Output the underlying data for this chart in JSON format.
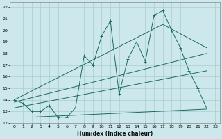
{
  "xlabel": "Humidex (Indice chaleur)",
  "bg_color": "#cce8ec",
  "grid_color": "#aacccc",
  "line_color": "#1a6b5a",
  "xlim": [
    -0.5,
    23.5
  ],
  "ylim": [
    12,
    22.4
  ],
  "xticks": [
    0,
    1,
    2,
    3,
    4,
    5,
    6,
    7,
    8,
    9,
    10,
    11,
    12,
    13,
    14,
    15,
    16,
    17,
    18,
    19,
    20,
    21,
    22,
    23
  ],
  "yticks": [
    12,
    13,
    14,
    15,
    16,
    17,
    18,
    19,
    20,
    21,
    22
  ],
  "line1_x": [
    0,
    1,
    2,
    3,
    4,
    5,
    6,
    7,
    8,
    9,
    10,
    11,
    12,
    13,
    14,
    15,
    16,
    17,
    18,
    19,
    20,
    21,
    22
  ],
  "line1_y": [
    14.0,
    13.7,
    13.0,
    13.0,
    13.5,
    12.5,
    12.5,
    13.3,
    17.8,
    17.0,
    19.5,
    20.8,
    14.5,
    17.5,
    19.0,
    17.3,
    21.3,
    21.7,
    20.0,
    18.5,
    16.5,
    15.0,
    13.3
  ],
  "line2_x": [
    0,
    17,
    22
  ],
  "line2_y": [
    14.0,
    20.5,
    18.5
  ],
  "line3_x": [
    0,
    22
  ],
  "line3_y": [
    13.8,
    18.0
  ],
  "line4_x": [
    0,
    22
  ],
  "line4_y": [
    13.3,
    16.5
  ],
  "line5_x": [
    2,
    22
  ],
  "line5_y": [
    12.5,
    13.2
  ]
}
